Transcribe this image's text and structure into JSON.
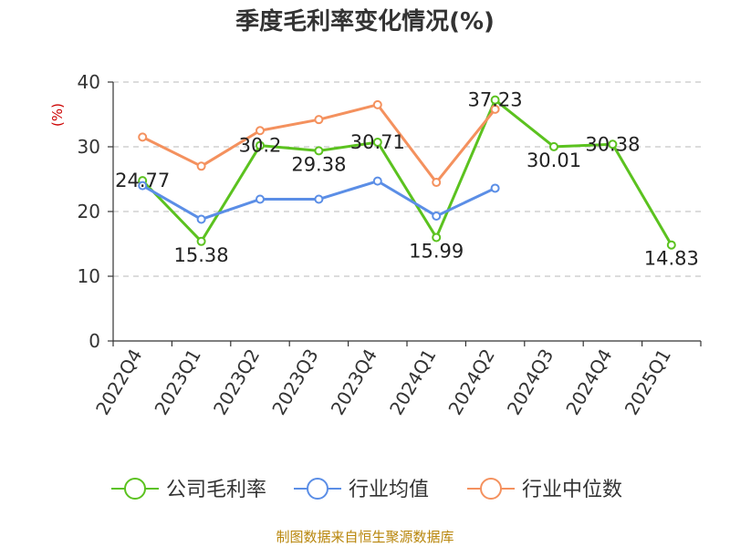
{
  "chart_data": {
    "type": "line",
    "title": "季度毛利率变化情况(%)",
    "ylabel": "(%)",
    "xlabel": "",
    "ylim": [
      0,
      40
    ],
    "yticks": [
      0,
      10,
      20,
      30,
      40
    ],
    "grid": true,
    "legend_position": "bottom",
    "categories": [
      "2022Q4",
      "2023Q1",
      "2023Q2",
      "2023Q3",
      "2023Q4",
      "2024Q1",
      "2024Q2",
      "2024Q3",
      "2024Q4",
      "2025Q1"
    ],
    "series": [
      {
        "name": "公司毛利率",
        "color": "#5bc21f",
        "values": [
          24.77,
          15.38,
          30.2,
          29.38,
          30.71,
          15.99,
          37.23,
          30.01,
          30.38,
          14.83
        ],
        "labels": [
          "24.77",
          "15.38",
          "30.2",
          "29.38",
          "30.71",
          "15.99",
          "37.23",
          "30.01",
          "30.38",
          "14.83"
        ]
      },
      {
        "name": "行业均值",
        "color": "#5b8ee6",
        "values": [
          24.0,
          18.8,
          21.9,
          21.9,
          24.7,
          19.3,
          23.6,
          null,
          null,
          null
        ]
      },
      {
        "name": "行业中位数",
        "color": "#f4915e",
        "values": [
          31.5,
          27.0,
          32.5,
          34.2,
          36.5,
          24.5,
          35.8,
          null,
          null,
          null
        ]
      }
    ],
    "source": "制图数据来自恒生聚源数据库"
  }
}
